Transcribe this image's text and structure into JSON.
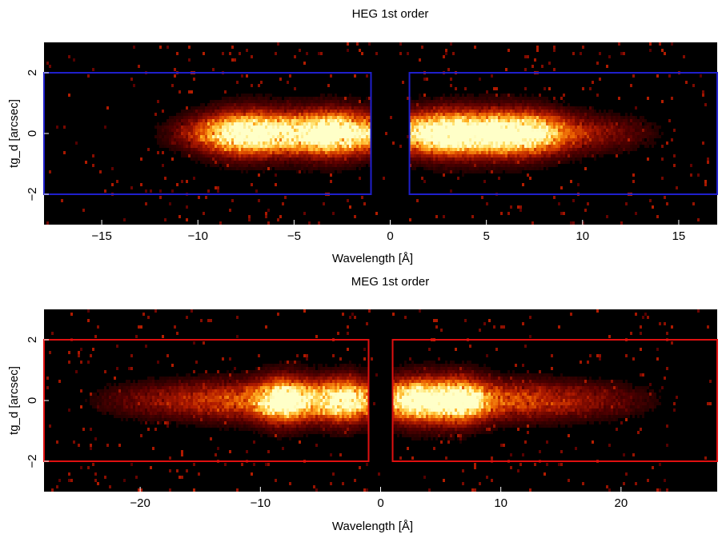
{
  "chart_data": [
    {
      "type": "heatmap",
      "title": "HEG 1st order",
      "xlabel": "Wavelength [Å]",
      "ylabel": "tg_d [arcsec]",
      "xlim": [
        -18,
        17
      ],
      "ylim": [
        -3,
        3
      ],
      "x_ticks": [
        -15,
        -10,
        -5,
        0,
        5,
        10,
        15
      ],
      "x_tick_labels": [
        "−15",
        "−10",
        "−5",
        "0",
        "5",
        "10",
        "15"
      ],
      "y_ticks": [
        -2,
        0,
        2
      ],
      "y_tick_labels": [
        "−2",
        "0",
        "2"
      ],
      "grid": false,
      "background_color": "#000000",
      "colormap": [
        "#000000",
        "#5a0000",
        "#b01a00",
        "#e85a00",
        "#ffae22",
        "#ffe06a",
        "#ffffc8"
      ],
      "extraction_regions": [
        {
          "x": [
            -18,
            -1
          ],
          "y": [
            -2,
            2
          ]
        },
        {
          "x": [
            1,
            17
          ],
          "y": [
            -2,
            2
          ]
        }
      ],
      "region_color": "#1f1fcc",
      "emission_blobs": [
        {
          "x": -7.5,
          "y": 0,
          "intensity": 1.0
        },
        {
          "x": -3,
          "y": 0,
          "intensity": 1.0
        },
        {
          "x": 3,
          "y": 0,
          "intensity": 1.0
        },
        {
          "x": 6.5,
          "y": 0,
          "intensity": 0.95
        }
      ],
      "signal_x_range": [
        -13,
        15
      ]
    },
    {
      "type": "heatmap",
      "title": "MEG 1st order",
      "xlabel": "Wavelength [Å]",
      "ylabel": "tg_d [arcsec]",
      "xlim": [
        -28,
        28
      ],
      "ylim": [
        -3,
        3
      ],
      "x_ticks": [
        -20,
        -10,
        0,
        10,
        20
      ],
      "x_tick_labels": [
        "−20",
        "−10",
        "0",
        "10",
        "20"
      ],
      "y_ticks": [
        -2,
        0,
        2
      ],
      "y_tick_labels": [
        "−2",
        "0",
        "2"
      ],
      "grid": false,
      "background_color": "#000000",
      "colormap": [
        "#000000",
        "#5a0000",
        "#b01a00",
        "#e85a00",
        "#ffae22",
        "#ffe06a",
        "#ffffc8"
      ],
      "extraction_regions": [
        {
          "x": [
            -28,
            -1
          ],
          "y": [
            -2,
            2
          ]
        },
        {
          "x": [
            1,
            28
          ],
          "y": [
            -2,
            2
          ]
        }
      ],
      "region_color": "#e01010",
      "emission_blobs": [
        {
          "x": -8,
          "y": 0,
          "intensity": 1.0
        },
        {
          "x": -3,
          "y": 0,
          "intensity": 0.8
        },
        {
          "x": 3,
          "y": 0,
          "intensity": 0.85
        },
        {
          "x": 6.5,
          "y": 0,
          "intensity": 1.0
        }
      ],
      "signal_x_range": [
        -26,
        25
      ]
    }
  ]
}
